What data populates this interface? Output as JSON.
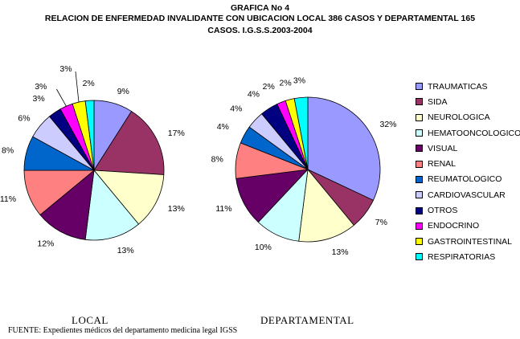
{
  "title": {
    "line1": "GRAFICA No 4",
    "line2": "RELACION DE ENFERMEDAD INVALIDANTE CON UBICACION LOCAL  386 CASOS Y DEPARTAMENTAL 165",
    "line3": "CASOS.  I.G.S.S.2003-2004"
  },
  "chart_data": [
    {
      "type": "pie",
      "caption": "LOCAL",
      "labels": [
        "TRAUMATICAS",
        "SIDA",
        "NEUROLOGICA",
        "HEMATOONCOLOGICO",
        "VISUAL",
        "RENAL",
        "REUMATOLOGICO",
        "CARDIOVASCULAR",
        "OTROS",
        "ENDOCRINO",
        "GASTROINTESTINAL",
        "RESPIRATORIAS"
      ],
      "values": [
        9,
        17,
        13,
        13,
        12,
        11,
        8,
        6,
        3,
        3,
        3,
        2
      ],
      "value_labels": [
        "9%",
        "17%",
        "13%",
        "13%",
        "12%",
        "11%",
        "8%",
        "6%",
        "3%",
        "3%",
        "3%",
        "2%"
      ]
    },
    {
      "type": "pie",
      "caption": "DEPARTAMENTAL",
      "labels": [
        "TRAUMATICAS",
        "SIDA",
        "NEUROLOGICA",
        "HEMATOONCOLOGICO",
        "VISUAL",
        "RENAL",
        "REUMATOLOGICO",
        "CARDIOVASCULAR",
        "OTROS",
        "ENDOCRINO",
        "GASTROINTESTINAL",
        "RESPIRATORIAS"
      ],
      "values": [
        32,
        7,
        13,
        10,
        11,
        8,
        4,
        4,
        4,
        2,
        2,
        3
      ],
      "value_labels": [
        "32%",
        "7%",
        "13%",
        "10%",
        "11%",
        "8%",
        "4%",
        "4%",
        "4%",
        "2%",
        "2%",
        "3%"
      ]
    }
  ],
  "legend": {
    "placement": "right",
    "items": [
      {
        "label": "TRAUMATICAS",
        "color": "#9999ff"
      },
      {
        "label": "SIDA",
        "color": "#993366"
      },
      {
        "label": "NEUROLOGICA",
        "color": "#ffffcc"
      },
      {
        "label": "HEMATOONCOLOGICO",
        "color": "#ccffff"
      },
      {
        "label": "VISUAL",
        "color": "#660066"
      },
      {
        "label": "RENAL",
        "color": "#ff8080"
      },
      {
        "label": "REUMATOLOGICO",
        "color": "#0066cc"
      },
      {
        "label": "CARDIOVASCULAR",
        "color": "#ccccff"
      },
      {
        "label": "OTROS",
        "color": "#000080"
      },
      {
        "label": "ENDOCRINO",
        "color": "#ff00ff"
      },
      {
        "label": "GASTROINTESTINAL",
        "color": "#ffff00"
      },
      {
        "label": "RESPIRATORIAS",
        "color": "#00ffff"
      }
    ]
  },
  "source": "FUENTE: Expedientes médicos del departamento medicina legal IGSS"
}
